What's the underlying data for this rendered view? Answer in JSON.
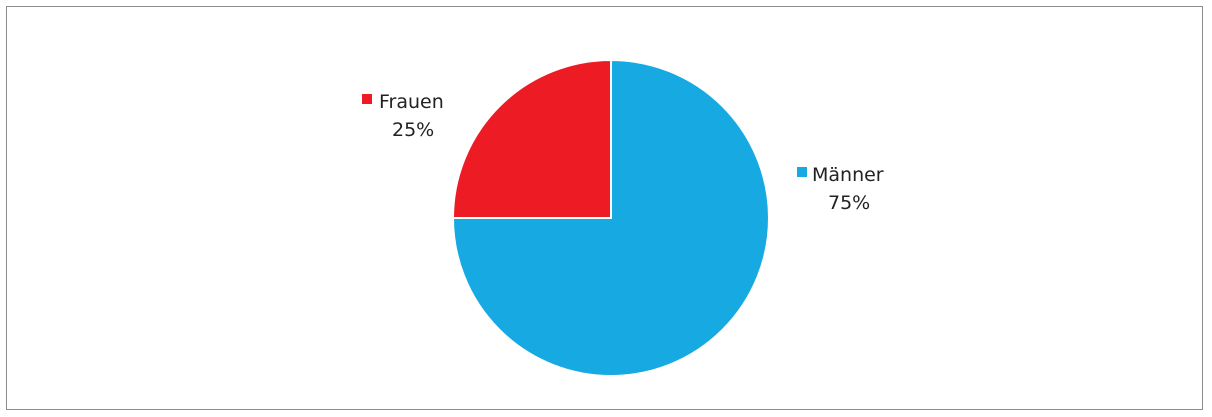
{
  "chart_data": {
    "type": "pie",
    "title": "",
    "start_angle_deg": 0,
    "direction": "clockwise",
    "slices": [
      {
        "name": "Männer",
        "value": 75,
        "label": "75%",
        "color": "#17a9e1"
      },
      {
        "name": "Frauen",
        "value": 25,
        "label": "25%",
        "color": "#ed1c24"
      }
    ]
  }
}
